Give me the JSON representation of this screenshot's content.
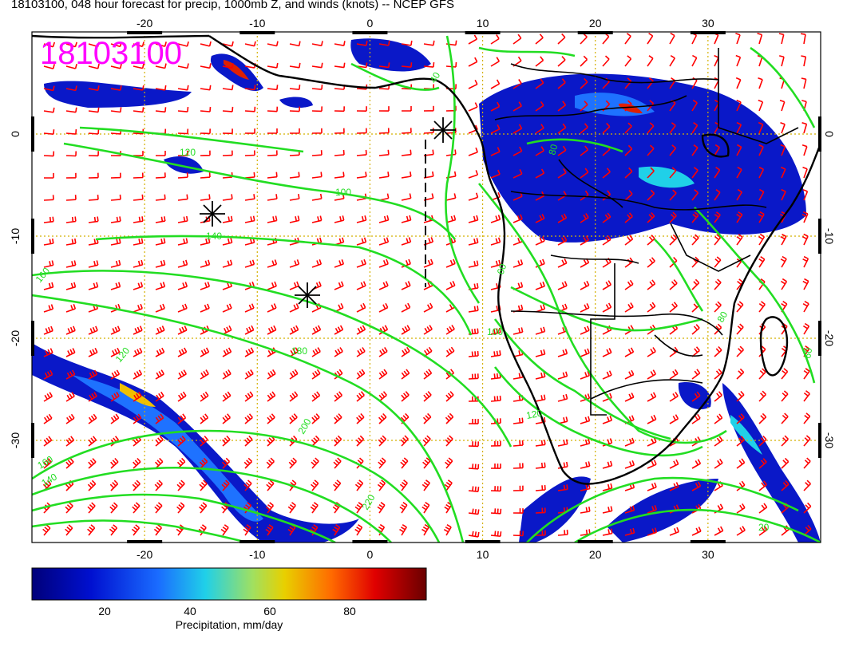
{
  "title": "18103100, 048 hour forecast for precip, 1000mb Z, and winds (knots) -- NCEP GFS",
  "stamp": "18103100",
  "map": {
    "lon_range": [
      -30,
      40
    ],
    "lat_range": [
      -40,
      10
    ],
    "lon_ticks": [
      "-20",
      "-10",
      "0",
      "10",
      "20",
      "30"
    ],
    "lat_ticks": [
      "0",
      "-10",
      "-20",
      "-30"
    ],
    "contour_labels": [
      "40",
      "60",
      "80",
      "80",
      "100",
      "120",
      "120",
      "140",
      "160",
      "180",
      "200",
      "220",
      "140",
      "160",
      "120",
      "100",
      "60",
      "20"
    ],
    "colors": {
      "wind_barbs": "#ff0000",
      "contours": "#22dd22",
      "stamp": "#ff00ff",
      "grid": "#d4b000",
      "coastlines": "#000000"
    }
  },
  "colorbar": {
    "caption": "Precipitation, mm/day",
    "ticks": [
      "20",
      "40",
      "60",
      "80"
    ],
    "tick_values": [
      20,
      40,
      60,
      80
    ],
    "range": [
      0,
      100
    ]
  }
}
